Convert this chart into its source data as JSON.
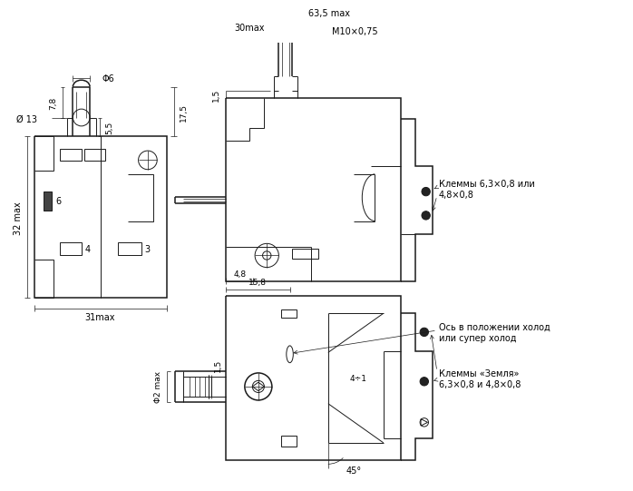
{
  "bg_color": "#ffffff",
  "lc": "#1a1a1a",
  "annotations": {
    "phi6": "Φ6",
    "phi13": "Ø 13",
    "dim_78": "7,8",
    "dim_55": "5,5",
    "dim_175": "17,5",
    "dim_32max": "32 max",
    "dim_31max": "31max",
    "dim_635max": "63,5 max",
    "dim_30max": "30max",
    "m10x075": "M10×0,75",
    "dim_15": "1,5",
    "klemmy1a": "Клеммы 6,3×0,8 или",
    "klemmy1b": "4,8×0,8",
    "dim_48": "4,8",
    "dim_158": "15,8",
    "phi2max": "Φ2 max",
    "dim_15b": "1,5",
    "os_text1": "Ось в положении холод",
    "os_text2": "или супер холод",
    "klemmy2a": "Клеммы «Земля»",
    "klemmy2b": "6,3×0,8 и 4,8×0,8",
    "dim_45": "45°",
    "dim_4d1": "4÷1"
  }
}
